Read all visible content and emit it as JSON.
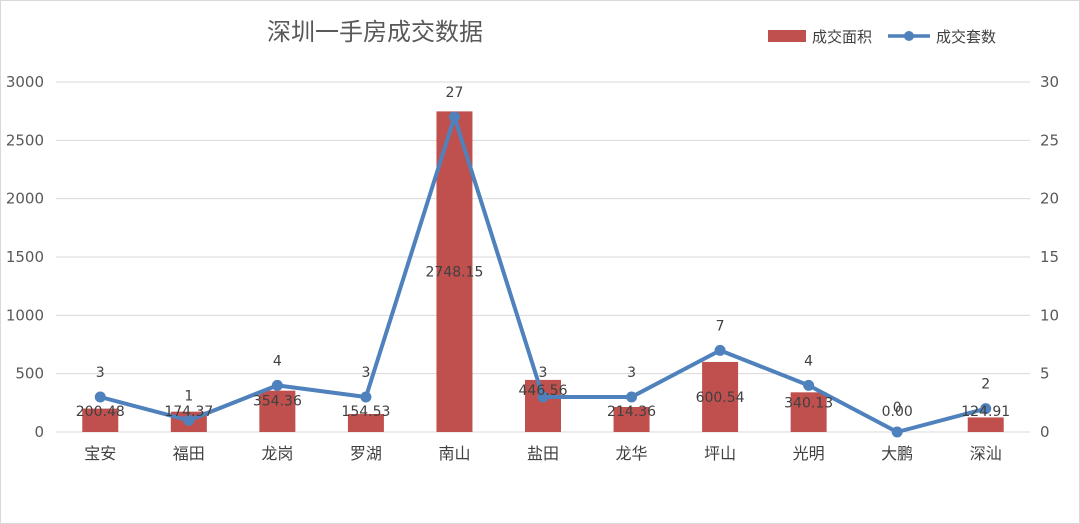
{
  "chart_data": {
    "type": "bar",
    "title": "深圳一手房成交数据",
    "categories": [
      "宝安",
      "福田",
      "龙岗",
      "罗湖",
      "南山",
      "盐田",
      "龙华",
      "坪山",
      "光明",
      "大鹏",
      "深汕"
    ],
    "series": [
      {
        "name": "成交面积",
        "type": "bar",
        "axis": "left",
        "values": [
          200.48,
          174.37,
          354.36,
          154.53,
          2748.15,
          446.56,
          214.36,
          600.54,
          340.13,
          0.0,
          124.91
        ],
        "labels": [
          "200.48",
          "174.37",
          "354.36",
          "154.53",
          "2748.15",
          "446.56",
          "214.36",
          "600.54",
          "340.13",
          "0.00",
          "124.91"
        ],
        "color": "#c0504d"
      },
      {
        "name": "成交套数",
        "type": "line",
        "axis": "right",
        "values": [
          3,
          1,
          4,
          3,
          27,
          3,
          3,
          7,
          4,
          0,
          2
        ],
        "labels": [
          "3",
          "1",
          "4",
          "3",
          "27",
          "3",
          "3",
          "7",
          "4",
          "0",
          "2"
        ],
        "color": "#4f81bd"
      }
    ],
    "y_left": {
      "ylim": [
        0,
        3000
      ],
      "ticks": [
        "0",
        "500",
        "1000",
        "1500",
        "2000",
        "2500",
        "3000"
      ]
    },
    "y_right": {
      "ylim": [
        0,
        30
      ],
      "ticks": [
        "0",
        "5",
        "10",
        "15",
        "20",
        "25",
        "30"
      ]
    },
    "grid": true,
    "legend_position": "top-right"
  }
}
